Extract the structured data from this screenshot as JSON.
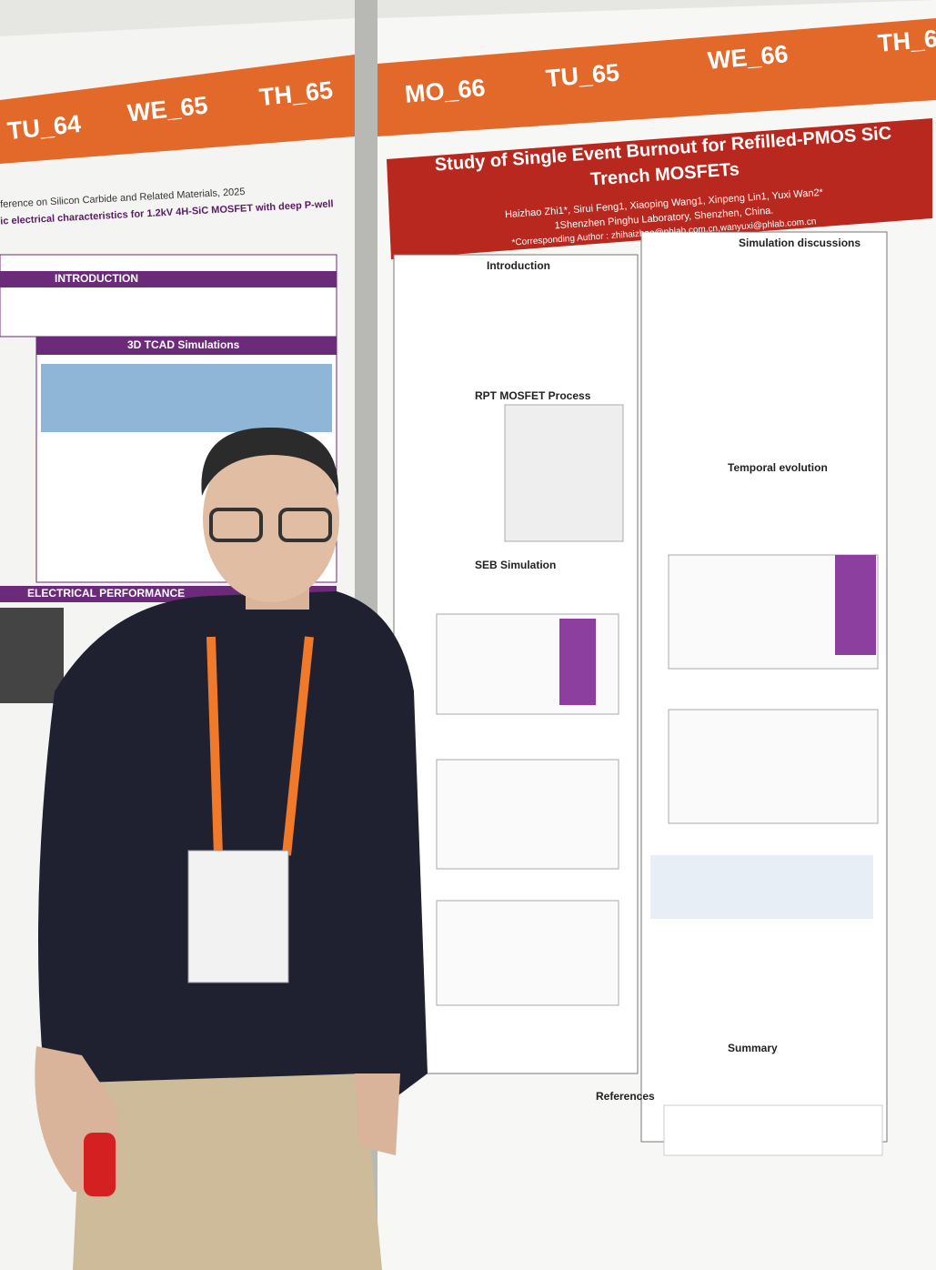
{
  "left_poster": {
    "banner": [
      "TU_64",
      "WE_65",
      "TH_65"
    ],
    "conference": "ference on Silicon Carbide and Related Materials, 2025",
    "title": "ic electrical characteristics for 1.2kV 4H-SiC MOSFET with deep P-well",
    "sections": [
      "INTRODUCTION",
      "3D TCAD Simulations",
      "ELECTRICAL PERFORMANCE"
    ]
  },
  "right_poster": {
    "banner": [
      "MO_66",
      "TU_65",
      "WE_66",
      "TH_6"
    ],
    "title": "Study of Single Event Burnout for Refilled-PMOS SiC Trench MOSFETs",
    "authors": "Haizhao Zhi1*, Sirui Feng1, Xiaoping Wang1, Xinpeng Lin1, Yuxi Wan2*",
    "affiliation": "1Shenzhen Pinghu Laboratory, Shenzhen, China.",
    "corresponding": "*Corresponding Author : zhihaizhao@phlab.com.cn,wanyuxi@phlab.com.cn",
    "sections": [
      "Introduction",
      "RPT MOSFET Process",
      "SEB Simulation",
      "Simulation discussions",
      "Temporal evolution",
      "Summary",
      "References"
    ]
  }
}
